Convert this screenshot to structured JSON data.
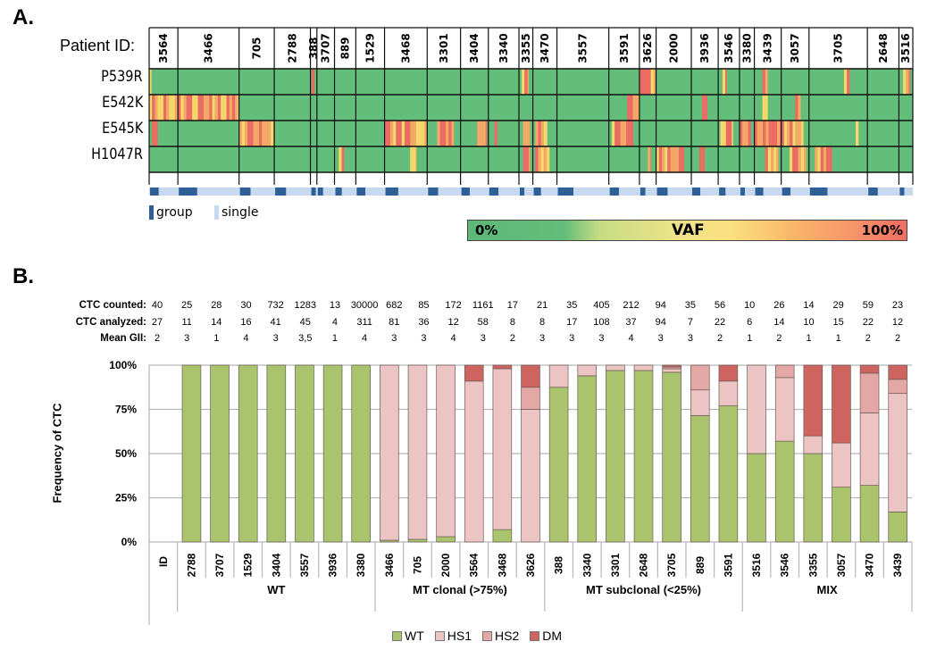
{
  "panelA": {
    "label": "A.",
    "patient_id_label": "Patient ID:",
    "patients": [
      "3564",
      "3466",
      "705",
      "2788",
      "388",
      "3707",
      "889",
      "1529",
      "3468",
      "3301",
      "3404",
      "3340",
      "3355",
      "3470",
      "3557",
      "3591",
      "3626",
      "2000",
      "3936",
      "3546",
      "3380",
      "3439",
      "3057",
      "3705",
      "2648",
      "3516"
    ],
    "patient_widths_rel": [
      31,
      66,
      38,
      39,
      7,
      19,
      23,
      31,
      46,
      36,
      30,
      33,
      15,
      26,
      56,
      33,
      18,
      38,
      29,
      23,
      16,
      29,
      30,
      63,
      34,
      15
    ],
    "mutations": [
      "P539R",
      "E542K",
      "E545K",
      "H1047R"
    ],
    "legend": {
      "group": "group",
      "single": "single"
    },
    "colors": {
      "wt_green": "#63be7b",
      "yellow": "#f9d86a",
      "orange": "#f7a766",
      "red": "#ef6a63",
      "group": "#2e5f96",
      "single": "#c6d9f1"
    },
    "vaf_scale": {
      "title": "VAF",
      "min_label": "0%",
      "max_label": "100%"
    }
  },
  "panelB": {
    "label": "B.",
    "row_labels": {
      "counted": "CTC counted:",
      "analyzed": "CTC analyzed:",
      "gii": "Mean GII:"
    },
    "ctc_counted": [
      "40",
      "25",
      "28",
      "30",
      "732",
      "1283",
      "13",
      "30000",
      "682",
      "85",
      "172",
      "1161",
      "17",
      "21",
      "35",
      "405",
      "212",
      "94",
      "35",
      "56",
      "10",
      "26",
      "14",
      "29",
      "59",
      "23"
    ],
    "ctc_analyzed": [
      "27",
      "11",
      "14",
      "16",
      "41",
      "45",
      "4",
      "311",
      "81",
      "36",
      "12",
      "58",
      "8",
      "8",
      "17",
      "108",
      "37",
      "94",
      "7",
      "22",
      "6",
      "14",
      "10",
      "15",
      "22",
      "12"
    ],
    "mean_gii": [
      "2",
      "3",
      "1",
      "4",
      "3",
      "3,5",
      "1",
      "4",
      "3",
      "3",
      "4",
      "3",
      "2",
      "3",
      "3",
      "3",
      "4",
      "3",
      "3",
      "2",
      "1",
      "2",
      "1",
      "1",
      "2",
      "2"
    ]
  },
  "chart_data": {
    "type": "bar",
    "stacked": true,
    "title": "",
    "xlabel": "",
    "ylabel": "Frequency of CTC",
    "ylim": [
      0,
      100
    ],
    "yticks": [
      "0%",
      "25%",
      "50%",
      "75%",
      "100%"
    ],
    "id_header": "ID",
    "categories": [
      "2788",
      "3707",
      "1529",
      "3404",
      "3557",
      "3936",
      "3380",
      "3466",
      "705",
      "2000",
      "3564",
      "3468",
      "3626",
      "388",
      "3340",
      "3301",
      "2648",
      "3705",
      "889",
      "3591",
      "3516",
      "3546",
      "3355",
      "3057",
      "3470",
      "3439"
    ],
    "groups": [
      {
        "name": "WT",
        "count": 7
      },
      {
        "name": "MT clonal (>75%)",
        "count": 6
      },
      {
        "name": "MT subclonal (<25%)",
        "count": 7
      },
      {
        "name": "MIX",
        "count": 6
      }
    ],
    "series": [
      {
        "name": "WT",
        "color": "#a9c46c",
        "values": [
          100,
          100,
          100,
          100,
          100,
          100,
          100,
          1,
          1.5,
          3,
          0,
          7,
          0,
          87.5,
          94,
          97,
          97,
          96,
          71.5,
          77,
          50,
          57,
          50,
          31,
          32,
          17
        ]
      },
      {
        "name": "HS1",
        "color": "#ecc4c3",
        "values": [
          0,
          0,
          0,
          0,
          0,
          0,
          0,
          99,
          98.5,
          97,
          91,
          91,
          75,
          12.5,
          6,
          3,
          3,
          2,
          14.5,
          14,
          50,
          36,
          10,
          25,
          41,
          67
        ]
      },
      {
        "name": "HS2",
        "color": "#e3a8a5",
        "values": [
          0,
          0,
          0,
          0,
          0,
          0,
          0,
          0,
          0,
          0,
          0,
          0,
          12.5,
          0,
          0,
          0,
          0,
          1,
          14,
          0,
          0,
          7,
          0,
          0,
          22.5,
          8
        ]
      },
      {
        "name": "DM",
        "color": "#cd6460",
        "values": [
          0,
          0,
          0,
          0,
          0,
          0,
          0,
          0,
          0,
          0,
          9,
          2,
          12.5,
          0,
          0,
          0,
          0,
          1,
          0,
          9,
          0,
          0,
          40,
          44,
          4.5,
          8
        ]
      }
    ],
    "legend": [
      "WT",
      "HS1",
      "HS2",
      "DM"
    ],
    "legend_position": "bottom",
    "grid": true
  }
}
